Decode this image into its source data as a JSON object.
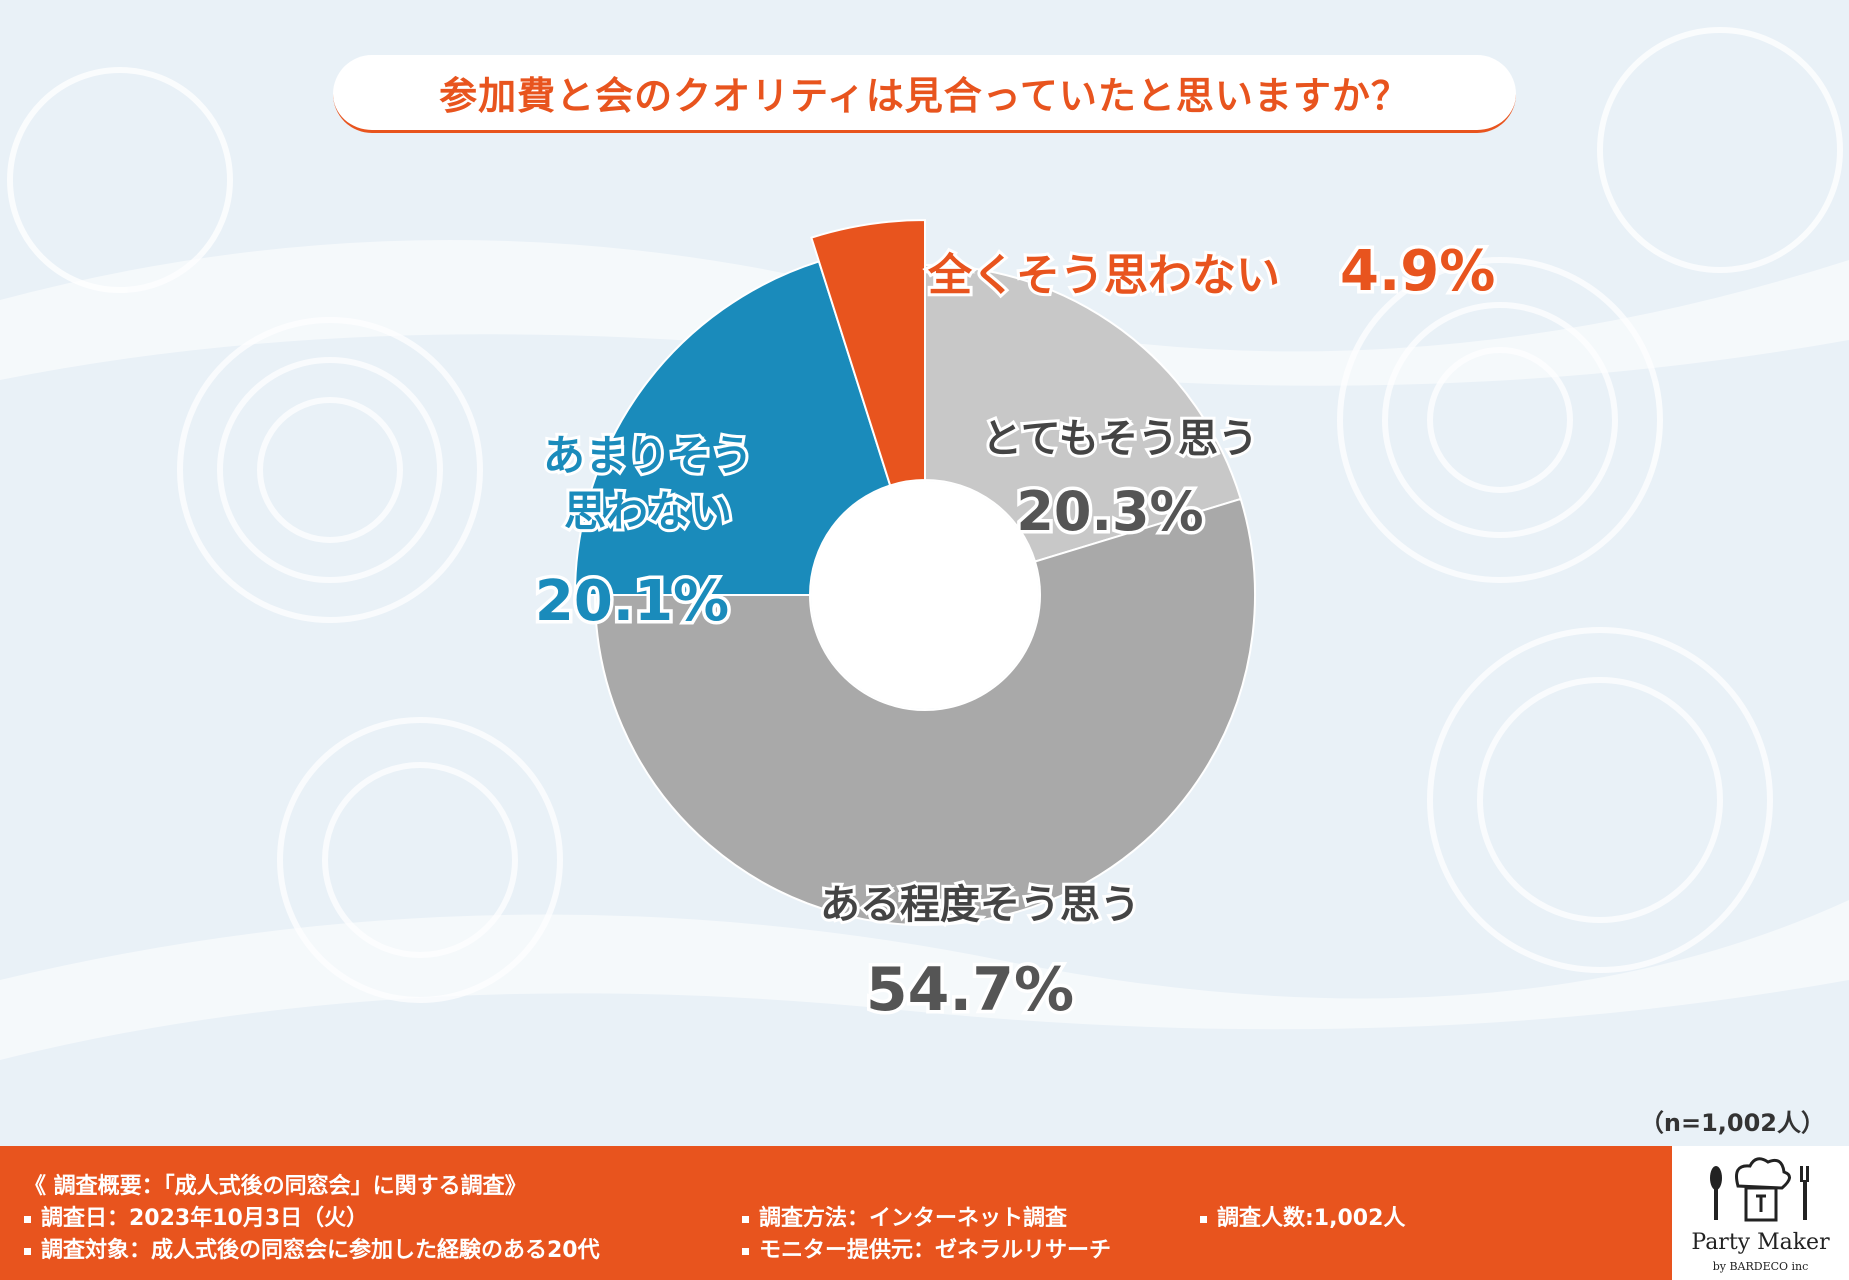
{
  "title": "参加費と会のクオリティは見合っていたと思いますか？",
  "sample_note": "（n=1,002人）",
  "chart_data": {
    "type": "pie",
    "title": "参加費と会のクオリティは見合っていたと思いますか？",
    "donut": true,
    "slices": [
      {
        "label": "とてもそう思う",
        "value": 20.3,
        "color": "#c8c8c8"
      },
      {
        "label": "ある程度そう思う",
        "value": 54.7,
        "color": "#a9a9a9"
      },
      {
        "label": "あまりそう思わない",
        "value": 20.1,
        "color": "#1a8bbb"
      },
      {
        "label": "全くそう思わない",
        "value": 4.9,
        "color": "#e8541e"
      }
    ],
    "value_labels": [
      "20.3%",
      "54.7%",
      "20.1%",
      "4.9%"
    ],
    "label_lines": {
      "0": [
        "とてもそう思う"
      ],
      "1": [
        "ある程度そう思う"
      ],
      "2": [
        "あまりそう",
        "思わない"
      ],
      "3": [
        "全くそう思わない"
      ]
    }
  },
  "footer": {
    "heading": "《 調査概要：「成人式後の同窓会」に関する調査》",
    "date": "調査日：2023年10月3日（火）",
    "target": "調査対象：成人式後の同窓会に参加した経験のある20代",
    "method": "調査方法：インターネット調査",
    "provider": "モニター提供元：ゼネラルリサーチ",
    "count": "調査人数:1,002人"
  },
  "logo": {
    "name": "Party Maker",
    "sub": "by BARDECO inc"
  },
  "colors": {
    "accent": "#e8541e",
    "blue": "#1a8bbb",
    "background": "#e9f1f7"
  }
}
